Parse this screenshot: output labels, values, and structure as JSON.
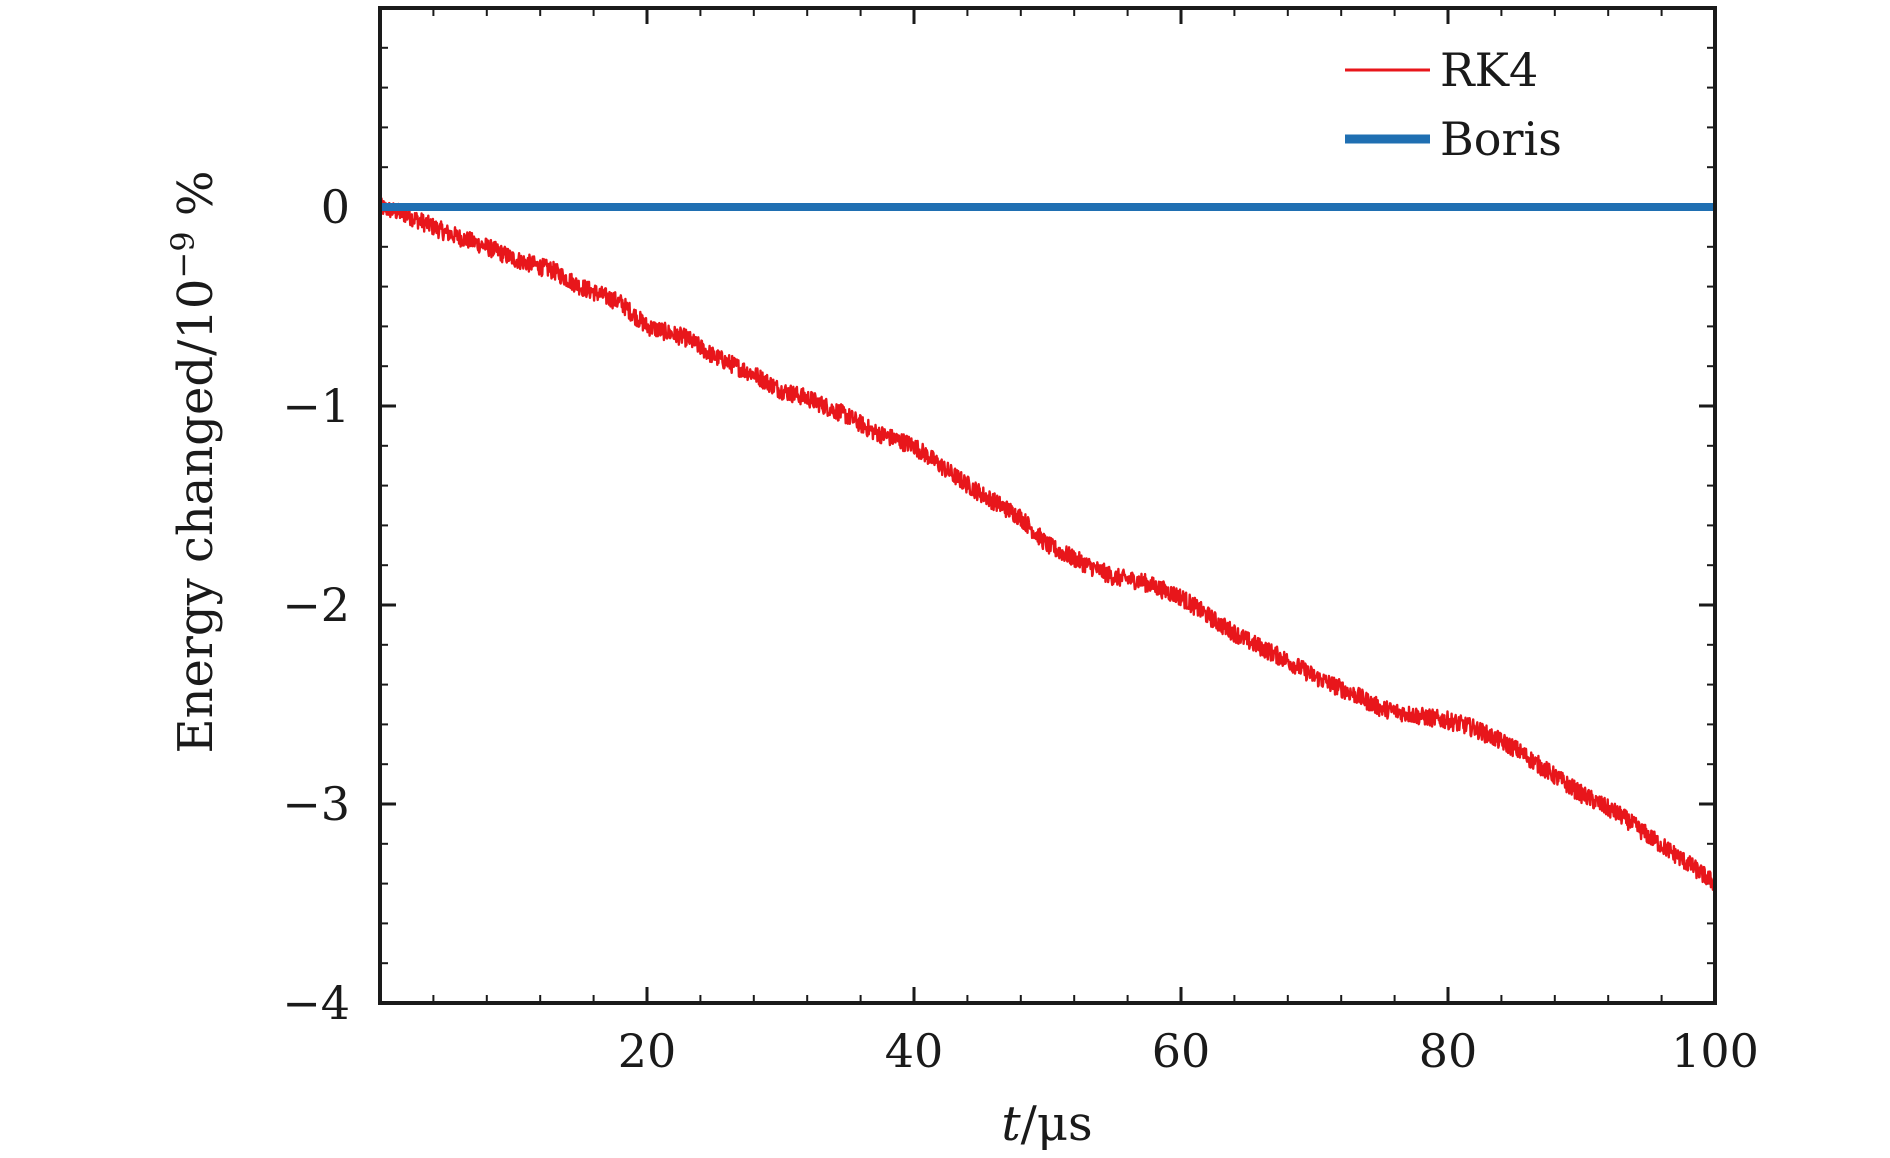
{
  "chart_data": {
    "type": "line",
    "xlabel_var": "t",
    "xlabel_unit": "/μs",
    "ylabel_main": "Energy changed/10",
    "ylabel_exp": "−9",
    "ylabel_unit": " %",
    "xlim": [
      0,
      100
    ],
    "ylim": [
      -4,
      1
    ],
    "xticks": [
      20,
      40,
      60,
      80,
      100
    ],
    "xtick_labels": [
      "20",
      "40",
      "60",
      "80",
      "100"
    ],
    "yticks": [
      0,
      -1,
      -2,
      -3,
      -4
    ],
    "ytick_labels": [
      "0",
      "−1",
      "−2",
      "−3",
      "−4"
    ],
    "grid": false,
    "legend_position": "top-right",
    "series": [
      {
        "name": "RK4",
        "color": "#e8161b",
        "x": [
          0,
          2,
          5,
          8,
          10,
          13,
          15,
          18,
          20,
          23,
          25,
          28,
          30,
          32,
          35,
          37,
          40,
          43,
          45,
          48,
          50,
          53,
          55,
          57,
          60,
          63,
          65,
          68,
          70,
          73,
          75,
          78,
          80,
          82,
          85,
          88,
          90,
          93,
          95,
          98,
          100
        ],
        "y": [
          0.0,
          -0.04,
          -0.13,
          -0.2,
          -0.26,
          -0.32,
          -0.4,
          -0.48,
          -0.6,
          -0.66,
          -0.75,
          -0.84,
          -0.92,
          -0.96,
          -1.05,
          -1.13,
          -1.2,
          -1.35,
          -1.44,
          -1.56,
          -1.7,
          -1.8,
          -1.86,
          -1.88,
          -1.96,
          -2.1,
          -2.18,
          -2.28,
          -2.36,
          -2.45,
          -2.52,
          -2.56,
          -2.58,
          -2.62,
          -2.72,
          -2.86,
          -2.95,
          -3.06,
          -3.16,
          -3.3,
          -3.4
        ]
      },
      {
        "name": "Boris",
        "color": "#1f6fb2",
        "x": [
          0,
          100
        ],
        "y": [
          0.0,
          0.0
        ]
      }
    ]
  }
}
